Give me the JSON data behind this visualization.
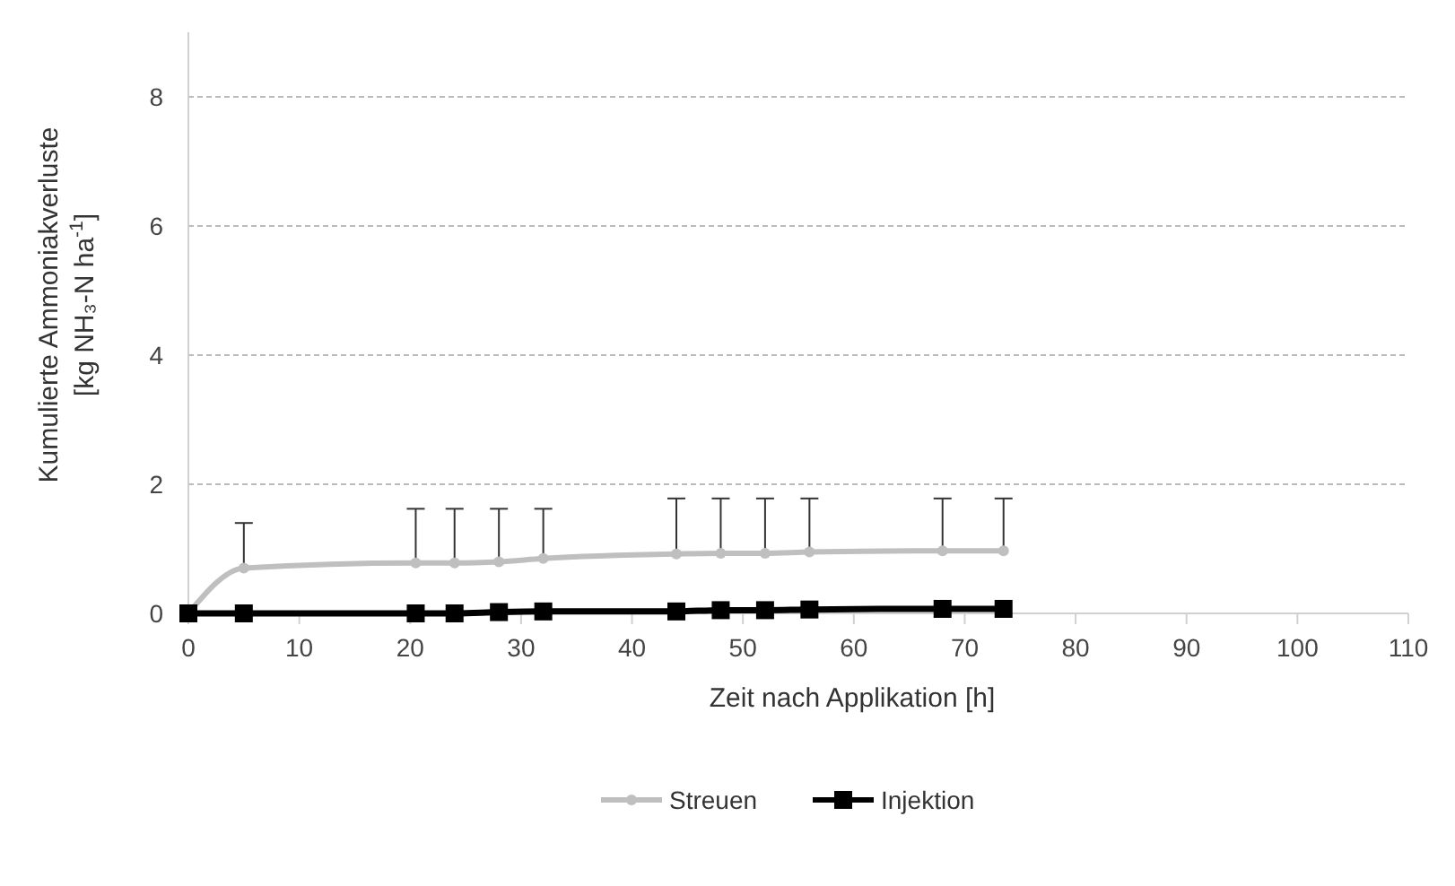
{
  "chart_data": {
    "type": "line",
    "xlabel": "Zeit nach Applikation [h]",
    "ylabel": "Kumulierte Ammoniakverluste\n[kg NH₃-N ha$^{-1}$]",
    "x": [
      0,
      5,
      20.5,
      24,
      28,
      32,
      44,
      48,
      52,
      56,
      68,
      73.5
    ],
    "xlim": [
      0,
      110
    ],
    "xticks": [
      0,
      10,
      20,
      30,
      40,
      50,
      60,
      70,
      80,
      90,
      100,
      110
    ],
    "ylim": [
      0,
      9
    ],
    "yticks": [
      0,
      2,
      4,
      6,
      8
    ],
    "grid": "y",
    "legend": "bottom",
    "series": [
      {
        "name": "Streuen",
        "color": "#bfbfbf",
        "marker": "circle",
        "values": [
          0,
          0.7,
          0.78,
          0.78,
          0.8,
          0.85,
          0.92,
          0.93,
          0.93,
          0.95,
          0.97,
          0.97
        ],
        "errors": [
          null,
          [
            0.7,
            1.4
          ],
          [
            0.78,
            1.62
          ],
          [
            0.78,
            1.62
          ],
          [
            0.8,
            1.62
          ],
          [
            0.85,
            1.62
          ],
          [
            0.92,
            1.78
          ],
          [
            0.93,
            1.78
          ],
          [
            0.93,
            1.78
          ],
          [
            0.95,
            1.78
          ],
          [
            0.97,
            1.78
          ],
          [
            0.97,
            1.78
          ]
        ]
      },
      {
        "name": "Injektion",
        "color": "#000000",
        "marker": "square",
        "values": [
          0,
          0,
          0,
          0,
          0.02,
          0.03,
          0.03,
          0.05,
          0.05,
          0.06,
          0.07,
          0.07
        ]
      }
    ]
  }
}
